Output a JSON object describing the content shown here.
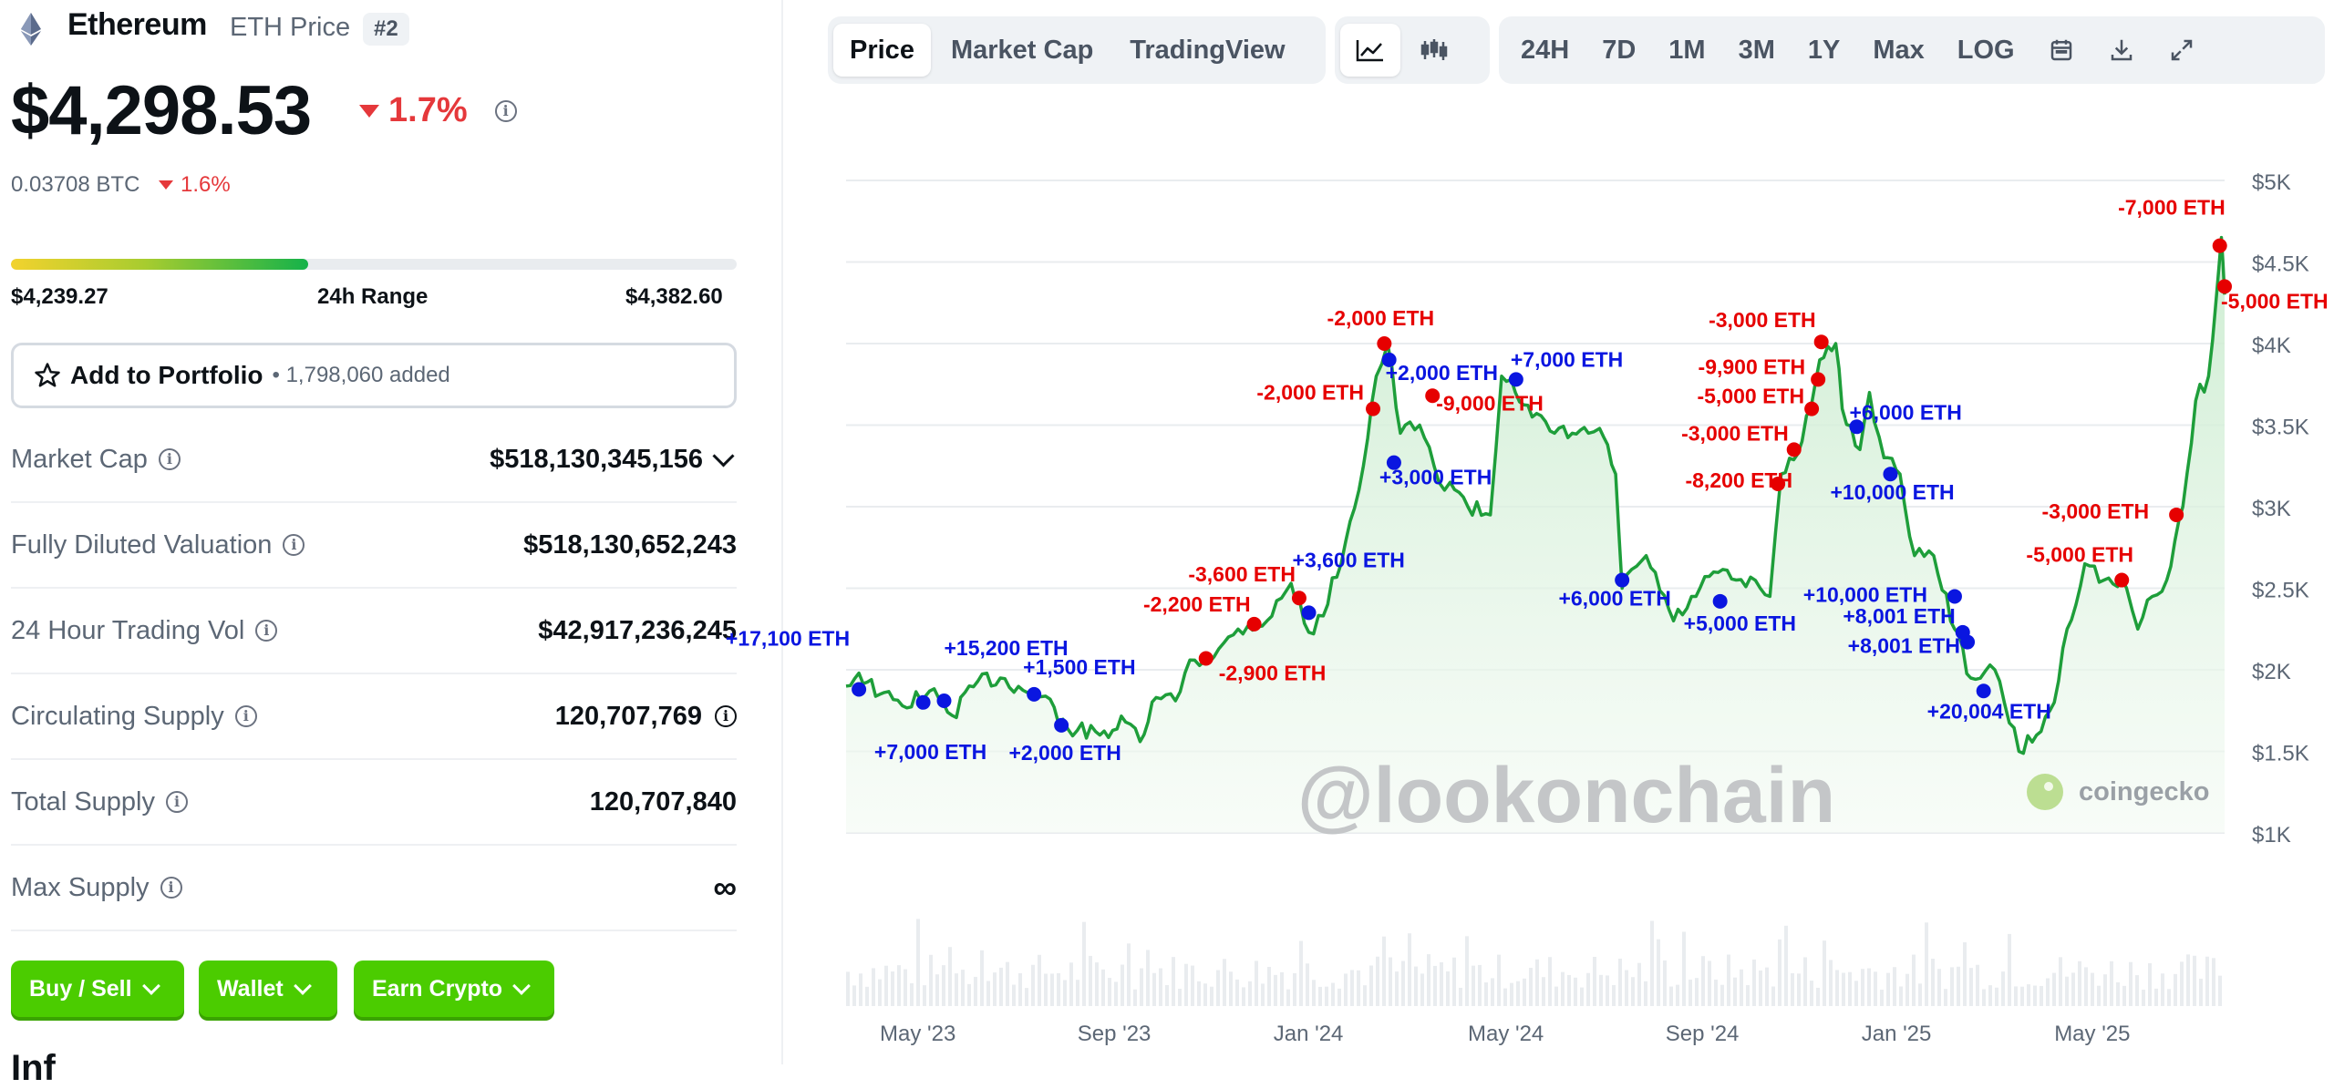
{
  "coin": {
    "name": "Ethereum",
    "symbol_label": "ETH Price",
    "rank": "#2",
    "price": "$4,298.53",
    "change_24h": "1.7%",
    "btc_price": "0.03708 BTC",
    "btc_change": "1.6%",
    "range": {
      "low": "$4,239.27",
      "label": "24h Range",
      "high": "$4,382.60",
      "position": 0.41
    }
  },
  "portfolio": {
    "label": "Add to Portfolio",
    "count": "• 1,798,060 added"
  },
  "stats": [
    {
      "label": "Market Cap",
      "value": "$518,130,345,156"
    },
    {
      "label": "Fully Diluted Valuation",
      "value": "$518,130,652,243"
    },
    {
      "label": "24 Hour Trading Vol",
      "value": "$42,917,236,245"
    },
    {
      "label": "Circulating Supply",
      "value": "120,707,769"
    },
    {
      "label": "Total Supply",
      "value": "120,707,840"
    },
    {
      "label": "Max Supply",
      "value": "∞"
    }
  ],
  "actions": {
    "buy_sell": "Buy / Sell",
    "wallet": "Wallet",
    "earn": "Earn Crypto"
  },
  "info_heading_partial": "Inf",
  "toolbar": {
    "views": [
      "Price",
      "Market Cap",
      "TradingView"
    ],
    "active_view": "Price",
    "chart_icons": [
      "line-chart-icon",
      "candlestick-icon"
    ],
    "ranges": [
      "24H",
      "7D",
      "1M",
      "3M",
      "1Y",
      "Max",
      "LOG"
    ],
    "tool_icons": [
      "calendar-icon",
      "download-icon",
      "expand-icon"
    ]
  },
  "watermark": "@lookonchain",
  "brand": "coingecko",
  "chart_data": {
    "type": "line",
    "y_ticks": [
      "$1K",
      "$1.5K",
      "$2K",
      "$2.5K",
      "$3K",
      "$3.5K",
      "$4K",
      "$4.5K",
      "$5K"
    ],
    "ylim": [
      1000,
      5000
    ],
    "x_ticks": [
      "May '23",
      "Sep '23",
      "Jan '24",
      "May '24",
      "Sep '24",
      "Jan '25",
      "May '25"
    ],
    "xlim": [
      "2023-04-10",
      "2025-08-15"
    ],
    "series": [
      {
        "x": [
          "2023-04-10",
          "2023-04-18",
          "2023-05-01",
          "2023-05-15",
          "2023-06-01",
          "2023-06-15",
          "2023-07-01",
          "2023-07-15",
          "2023-08-01",
          "2023-08-15",
          "2023-08-20",
          "2023-09-01",
          "2023-09-15",
          "2023-10-01",
          "2023-10-10",
          "2023-10-20",
          "2023-11-01",
          "2023-11-10",
          "2023-11-25",
          "2023-12-10",
          "2023-12-28",
          "2024-01-12",
          "2024-01-23",
          "2024-02-01",
          "2024-02-15",
          "2024-02-26",
          "2024-03-05",
          "2024-03-12",
          "2024-03-20",
          "2024-04-01",
          "2024-04-13",
          "2024-04-20",
          "2024-05-01",
          "2024-05-15",
          "2024-05-22",
          "2024-05-28",
          "2024-06-10",
          "2024-06-24",
          "2024-07-05",
          "2024-07-15",
          "2024-07-22",
          "2024-08-01",
          "2024-08-05",
          "2024-08-20",
          "2024-09-06",
          "2024-09-20",
          "2024-10-01",
          "2024-10-15",
          "2024-10-30",
          "2024-11-05",
          "2024-11-12",
          "2024-11-25",
          "2024-12-06",
          "2024-12-16",
          "2024-12-20",
          "2024-12-31",
          "2025-01-06",
          "2025-01-15",
          "2025-01-25",
          "2025-02-03",
          "2025-02-15",
          "2025-02-28",
          "2025-03-10",
          "2025-03-25",
          "2025-04-09",
          "2025-04-20",
          "2025-05-01",
          "2025-05-09",
          "2025-05-20",
          "2025-06-01",
          "2025-06-15",
          "2025-06-22",
          "2025-07-01",
          "2025-07-10",
          "2025-07-20",
          "2025-07-28",
          "2025-08-05",
          "2025-08-10",
          "2025-08-13",
          "2025-08-15"
        ],
        "y": [
          1900,
          1980,
          1850,
          1780,
          1870,
          1720,
          1930,
          1950,
          1860,
          1820,
          1680,
          1630,
          1600,
          1680,
          1560,
          1830,
          1810,
          2060,
          2080,
          2250,
          2300,
          2530,
          2230,
          2330,
          2790,
          3250,
          3800,
          4000,
          3450,
          3500,
          3150,
          3150,
          3000,
          2950,
          3800,
          3780,
          3550,
          3450,
          3450,
          3450,
          3480,
          3200,
          2500,
          2700,
          2300,
          2450,
          2600,
          2550,
          2500,
          2450,
          3200,
          3400,
          3900,
          4000,
          3600,
          3350,
          3700,
          3300,
          3200,
          2700,
          2700,
          2250,
          1950,
          2000,
          1500,
          1600,
          1800,
          2250,
          2650,
          2550,
          2500,
          2250,
          2450,
          2550,
          3000,
          3650,
          3800,
          4300,
          4650,
          4300
        ]
      }
    ],
    "annotations": [
      {
        "x": "2023-04-18",
        "y": 1880,
        "label": "+17,100 ETH",
        "type": "buy"
      },
      {
        "x": "2023-05-28",
        "y": 1800,
        "label": "+7,000 ETH",
        "type": "buy"
      },
      {
        "x": "2023-06-10",
        "y": 1810,
        "label": "+15,200 ETH",
        "type": "buy"
      },
      {
        "x": "2023-08-05",
        "y": 1850,
        "label": "+1,500 ETH",
        "type": "buy"
      },
      {
        "x": "2023-08-22",
        "y": 1660,
        "label": "+2,000 ETH",
        "type": "buy"
      },
      {
        "x": "2023-11-20",
        "y": 2070,
        "label": "-2,900 ETH",
        "type": "sell"
      },
      {
        "x": "2023-12-20",
        "y": 2280,
        "label": "-2,200 ETH",
        "type": "sell"
      },
      {
        "x": "2024-01-17",
        "y": 2440,
        "label": "-3,600 ETH",
        "type": "sell"
      },
      {
        "x": "2024-01-23",
        "y": 2350,
        "label": "+3,600 ETH",
        "type": "buy"
      },
      {
        "x": "2024-03-03",
        "y": 3600,
        "label": "-2,000 ETH",
        "type": "sell"
      },
      {
        "x": "2024-03-10",
        "y": 4000,
        "label": "-2,000 ETH",
        "type": "sell"
      },
      {
        "x": "2024-03-13",
        "y": 3900,
        "label": "+2,000 ETH",
        "type": "buy"
      },
      {
        "x": "2024-03-16",
        "y": 3270,
        "label": "+3,000 ETH",
        "type": "buy"
      },
      {
        "x": "2024-04-09",
        "y": 3680,
        "label": "-9,000 ETH",
        "type": "sell"
      },
      {
        "x": "2024-05-31",
        "y": 3780,
        "label": "+7,000 ETH",
        "type": "buy"
      },
      {
        "x": "2024-08-05",
        "y": 2550,
        "label": "+6,000 ETH",
        "type": "buy"
      },
      {
        "x": "2024-10-05",
        "y": 2420,
        "label": "+5,000 ETH",
        "type": "buy"
      },
      {
        "x": "2024-11-10",
        "y": 3140,
        "label": "-8,200 ETH",
        "type": "sell"
      },
      {
        "x": "2024-11-20",
        "y": 3350,
        "label": "-3,000 ETH",
        "type": "sell"
      },
      {
        "x": "2024-12-01",
        "y": 3600,
        "label": "-5,000 ETH",
        "type": "sell"
      },
      {
        "x": "2024-12-05",
        "y": 3780,
        "label": "-9,900 ETH",
        "type": "sell"
      },
      {
        "x": "2024-12-07",
        "y": 4010,
        "label": "-3,000 ETH",
        "type": "sell"
      },
      {
        "x": "2024-12-29",
        "y": 3490,
        "label": "+6,000 ETH",
        "type": "buy"
      },
      {
        "x": "2025-01-19",
        "y": 3200,
        "label": "+10,000 ETH",
        "type": "buy"
      },
      {
        "x": "2025-02-28",
        "y": 2450,
        "label": "+10,000 ETH",
        "type": "buy"
      },
      {
        "x": "2025-03-05",
        "y": 2230,
        "label": "+8,001 ETH",
        "type": "buy"
      },
      {
        "x": "2025-03-08",
        "y": 2170,
        "label": "+8,001 ETH",
        "type": "buy"
      },
      {
        "x": "2025-03-18",
        "y": 1870,
        "label": "+20,004 ETH",
        "type": "buy"
      },
      {
        "x": "2025-06-12",
        "y": 2550,
        "label": "-5,000 ETH",
        "type": "sell"
      },
      {
        "x": "2025-07-16",
        "y": 2950,
        "label": "-3,000 ETH",
        "type": "sell"
      },
      {
        "x": "2025-08-12",
        "y": 4600,
        "label": "-7,000 ETH",
        "type": "sell"
      },
      {
        "x": "2025-08-15",
        "y": 4350,
        "label": "-5,000 ETH",
        "type": "sell"
      }
    ],
    "colors": {
      "line": "#1e9e3a",
      "fill": "#e3f5e5",
      "buy": "#0a16e0",
      "sell": "#e60000",
      "grid": "#e9ecef"
    }
  }
}
